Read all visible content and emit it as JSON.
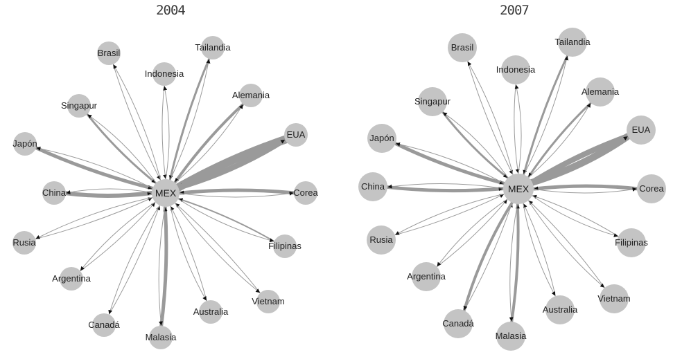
{
  "colors": {
    "node_fill": "#c4c4c4",
    "edge_stroke": "#9a9a9a",
    "arrow": "#111111",
    "label": "#222222"
  },
  "panels": [
    {
      "id": "2004",
      "title": "2004",
      "hub": "MEX",
      "nodes": [
        {
          "id": "brasil",
          "label": "Brasil"
        },
        {
          "id": "indonesia",
          "label": "Indonesia"
        },
        {
          "id": "tailandia",
          "label": "Tailandia"
        },
        {
          "id": "singapur",
          "label": "Singapur"
        },
        {
          "id": "alemania",
          "label": "Alemania"
        },
        {
          "id": "japon",
          "label": "Japón"
        },
        {
          "id": "eua",
          "label": "EUA"
        },
        {
          "id": "china",
          "label": "China"
        },
        {
          "id": "corea",
          "label": "Corea"
        },
        {
          "id": "rusia",
          "label": "Rusia"
        },
        {
          "id": "filipinas",
          "label": "Filipinas"
        },
        {
          "id": "argentina",
          "label": "Argentina"
        },
        {
          "id": "vietnam",
          "label": "Vietnam"
        },
        {
          "id": "canada",
          "label": "Canadá"
        },
        {
          "id": "australia",
          "label": "Australia"
        },
        {
          "id": "malasia",
          "label": "Malasia"
        }
      ],
      "import_weights": {
        "brasil": 1,
        "indonesia": 1,
        "tailandia": 3,
        "singapur": 3,
        "alemania": 4,
        "japon": 5,
        "eua": 12,
        "china": 6,
        "corea": 5,
        "rusia": 1,
        "filipinas": 2,
        "argentina": 1,
        "vietnam": 1,
        "canada": 1,
        "australia": 1,
        "malasia": 5
      },
      "export_weights": {
        "brasil": 1,
        "indonesia": 1,
        "tailandia": 1,
        "singapur": 1,
        "alemania": 1,
        "japon": 1,
        "eua": 8,
        "china": 1,
        "corea": 1,
        "rusia": 1,
        "filipinas": 1,
        "argentina": 1,
        "vietnam": 1,
        "canada": 1,
        "australia": 1,
        "malasia": 1
      }
    },
    {
      "id": "2007",
      "title": "2007",
      "hub": "MEX",
      "nodes": [
        {
          "id": "brasil",
          "label": "Brasil"
        },
        {
          "id": "indonesia",
          "label": "Indonesia"
        },
        {
          "id": "tailandia",
          "label": "Tailandia"
        },
        {
          "id": "singapur",
          "label": "Singapur"
        },
        {
          "id": "alemania",
          "label": "Alemania"
        },
        {
          "id": "japon",
          "label": "Japón"
        },
        {
          "id": "eua",
          "label": "EUA"
        },
        {
          "id": "china",
          "label": "China"
        },
        {
          "id": "corea",
          "label": "Corea"
        },
        {
          "id": "rusia",
          "label": "Rusia"
        },
        {
          "id": "filipinas",
          "label": "Filipinas"
        },
        {
          "id": "argentina",
          "label": "Argentina"
        },
        {
          "id": "vietnam",
          "label": "Vietnam"
        },
        {
          "id": "canada",
          "label": "Canadá"
        },
        {
          "id": "australia",
          "label": "Australia"
        },
        {
          "id": "malasia",
          "label": "Malasia"
        }
      ],
      "import_weights": {
        "brasil": 1,
        "indonesia": 1,
        "tailandia": 3,
        "singapur": 3,
        "alemania": 3,
        "japon": 5,
        "eua": 8,
        "china": 5,
        "corea": 5,
        "rusia": 1,
        "filipinas": 1,
        "argentina": 1,
        "vietnam": 1,
        "canada": 1,
        "australia": 1,
        "malasia": 4
      },
      "export_weights": {
        "brasil": 1,
        "indonesia": 1,
        "tailandia": 1,
        "singapur": 1,
        "alemania": 1,
        "japon": 1,
        "eua": 10,
        "china": 1,
        "corea": 1,
        "rusia": 1,
        "filipinas": 1,
        "argentina": 1,
        "vietnam": 1,
        "canada": 4,
        "australia": 1,
        "malasia": 1
      }
    }
  ]
}
